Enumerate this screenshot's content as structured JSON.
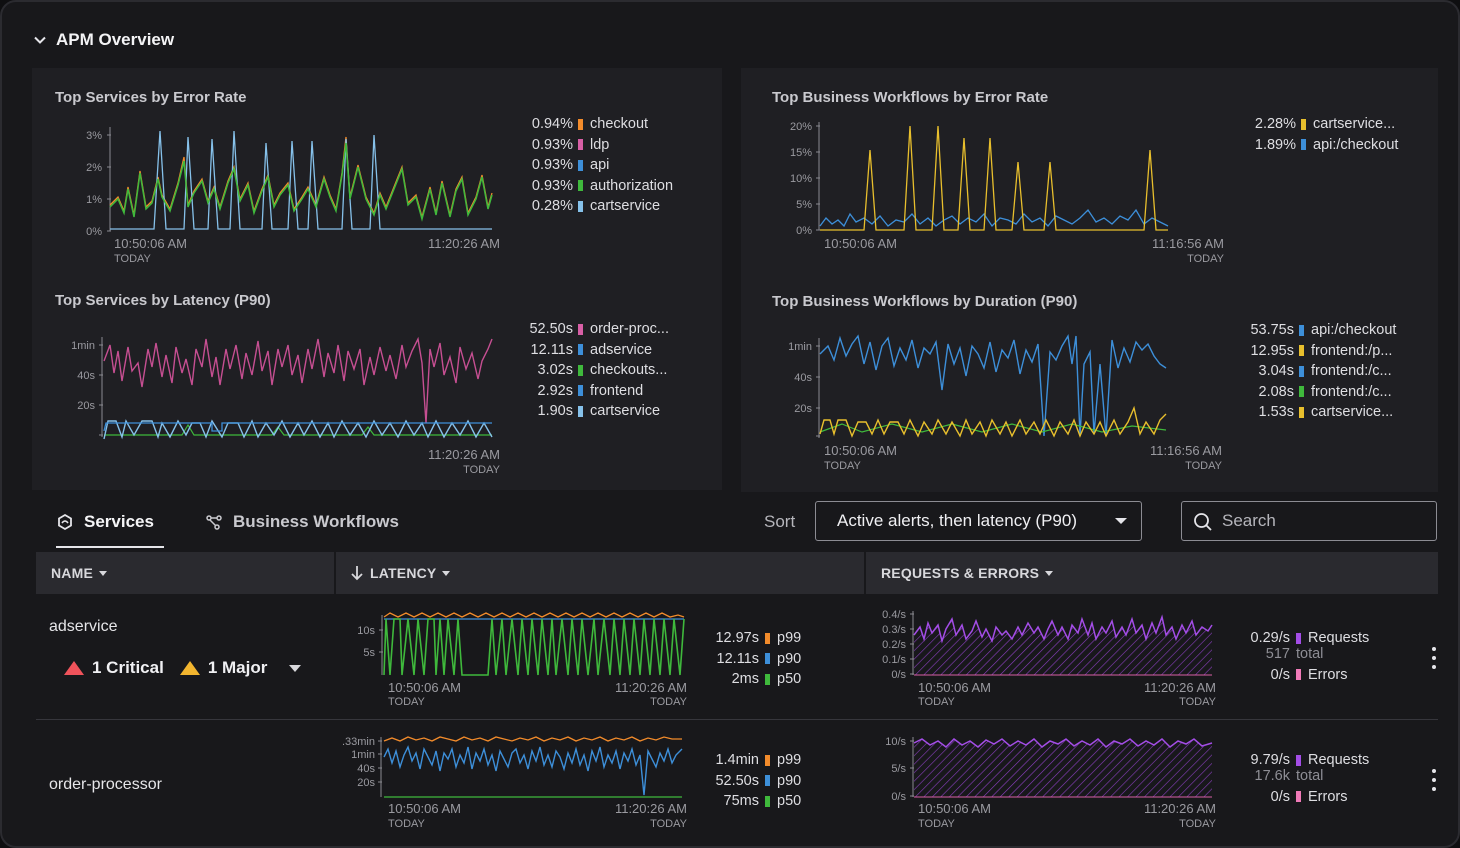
{
  "section": {
    "title": "APM Overview"
  },
  "colors": {
    "orange": "#f28b2b",
    "pink": "#d85fa6",
    "green": "#3fb93c",
    "blue": "#3d8fd9",
    "lightblue": "#86c1ea",
    "yellow": "#e8bf2d",
    "purple": "#a34de6",
    "violet": "#b45ce0",
    "red": "#f0535b",
    "lime": "#9fdd3a",
    "magenta": "#c64f92"
  },
  "panels": {
    "svc_error": {
      "title": "Top Services by Error Rate",
      "y_ticks": [
        "3%",
        "2%",
        "1%",
        "0%"
      ],
      "x_start": "10:50:06 AM",
      "x_start_sub": "TODAY",
      "x_end": "11:20:26 AM",
      "legend": [
        {
          "value": "0.94%",
          "label": "checkout",
          "color": "#f28b2b"
        },
        {
          "value": "0.93%",
          "label": "ldp",
          "color": "#d85fa6"
        },
        {
          "value": "0.93%",
          "label": "api",
          "color": "#3d8fd9"
        },
        {
          "value": "0.93%",
          "label": "authorization",
          "color": "#3fb93c"
        },
        {
          "value": "0.28%",
          "label": "cartservice",
          "color": "#86c1ea"
        }
      ]
    },
    "svc_latency": {
      "title": "Top Services by Latency (P90)",
      "y_ticks": [
        "1min",
        "40s",
        "20s"
      ],
      "x_end": "11:20:26 AM",
      "x_end_sub": "TODAY",
      "legend": [
        {
          "value": "52.50s",
          "label": "order-proc...",
          "color": "#d85fa6"
        },
        {
          "value": "12.11s",
          "label": "adservice",
          "color": "#3d8fd9"
        },
        {
          "value": "3.02s",
          "label": "checkouts...",
          "color": "#3fb93c"
        },
        {
          "value": "2.92s",
          "label": "frontend",
          "color": "#3d8fd9"
        },
        {
          "value": "1.90s",
          "label": "cartservice",
          "color": "#86c1ea"
        }
      ]
    },
    "wf_error": {
      "title": "Top Business Workflows by Error Rate",
      "y_ticks": [
        "20%",
        "15%",
        "10%",
        "5%",
        "0%"
      ],
      "x_start": "10:50:06 AM",
      "x_end": "11:16:56 AM",
      "x_end_sub": "TODAY",
      "legend": [
        {
          "value": "2.28%",
          "label": "cartservice...",
          "color": "#e8bf2d"
        },
        {
          "value": "1.89%",
          "label": "api:/checkout",
          "color": "#3d8fd9"
        }
      ]
    },
    "wf_duration": {
      "title": "Top Business Workflows by Duration (P90)",
      "y_ticks": [
        "1min",
        "40s",
        "20s"
      ],
      "x_start": "10:50:06 AM",
      "x_start_sub": "TODAY",
      "x_end": "11:16:56 AM",
      "x_end_sub": "TODAY",
      "legend": [
        {
          "value": "53.75s",
          "label": "api:/checkout",
          "color": "#3d8fd9"
        },
        {
          "value": "12.95s",
          "label": "frontend:/p...",
          "color": "#e8bf2d"
        },
        {
          "value": "3.04s",
          "label": "frontend:/c...",
          "color": "#3d8fd9"
        },
        {
          "value": "2.08s",
          "label": "frontend:/c...",
          "color": "#3fb93c"
        },
        {
          "value": "1.53s",
          "label": "cartservice...",
          "color": "#e8bf2d"
        }
      ]
    }
  },
  "tabs": [
    {
      "label": "Services"
    },
    {
      "label": "Business Workflows"
    }
  ],
  "sort": {
    "label": "Sort",
    "value": "Active alerts, then latency (P90)"
  },
  "search": {
    "placeholder": "Search"
  },
  "table": {
    "headers": {
      "name": "NAME",
      "latency": "LATENCY",
      "requests": "REQUESTS & ERRORS"
    },
    "rows": [
      {
        "name": "adservice",
        "alerts": {
          "critical": "1 Critical",
          "major": "1 Major"
        },
        "latency": {
          "y_ticks": [
            "10s",
            "5s"
          ],
          "x_start": "10:50:06 AM",
          "x_start_sub": "TODAY",
          "x_end": "11:20:26 AM",
          "x_end_sub": "TODAY",
          "p99": "12.97s",
          "p90": "12.11s",
          "p50": "2ms",
          "p99_label": "p99",
          "p90_label": "p90",
          "p50_label": "p50"
        },
        "requests": {
          "y_ticks": [
            "0.4/s",
            "0.3/s",
            "0.2/s",
            "0.1/s",
            "0/s"
          ],
          "x_start": "10:50:06 AM",
          "x_start_sub": "TODAY",
          "x_end": "11:20:26 AM",
          "x_end_sub": "TODAY",
          "rate": "0.29/s",
          "rate_label": "Requests",
          "total": "517",
          "total_label": "total",
          "errors": "0/s",
          "errors_label": "Errors"
        }
      },
      {
        "name": "order-processor",
        "latency": {
          "y_ticks": [
            ".33min",
            "1min",
            "40s",
            "20s"
          ],
          "x_start": "10:50:06 AM",
          "x_start_sub": "TODAY",
          "x_end": "11:20:26 AM",
          "x_end_sub": "TODAY",
          "p99": "1.4min",
          "p90": "52.50s",
          "p50": "75ms",
          "p99_label": "p99",
          "p90_label": "p90",
          "p50_label": "p50"
        },
        "requests": {
          "y_ticks": [
            "10/s",
            "5/s",
            "0/s"
          ],
          "x_start": "10:50:06 AM",
          "x_start_sub": "TODAY",
          "x_end": "11:20:26 AM",
          "x_end_sub": "TODAY",
          "rate": "9.79/s",
          "rate_label": "Requests",
          "total": "17.6k",
          "total_label": "total",
          "errors": "0/s",
          "errors_label": "Errors"
        }
      }
    ]
  }
}
